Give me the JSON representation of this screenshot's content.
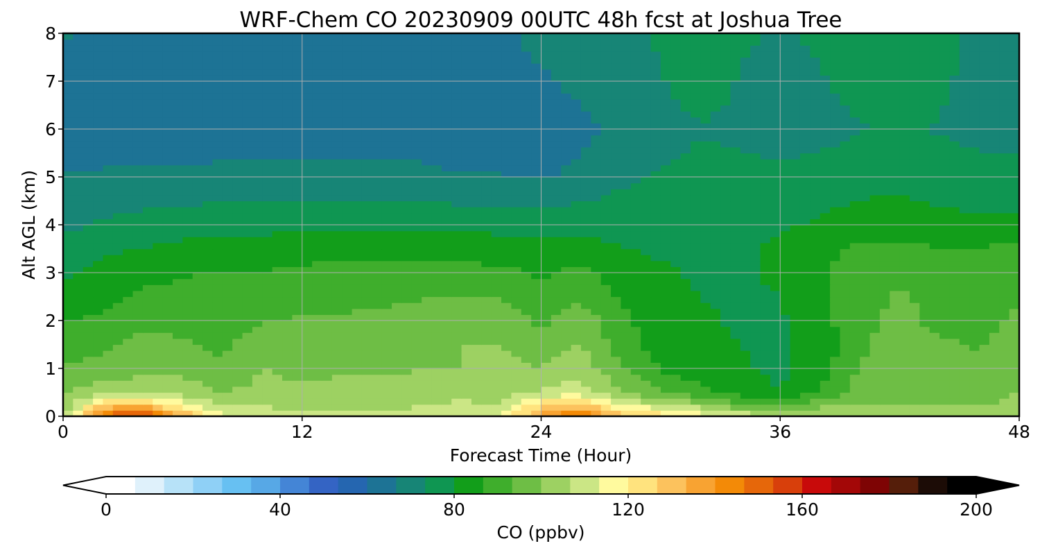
{
  "chart_data": {
    "type": "heatmap",
    "title": "WRF-Chem CO  20230909 00UTC 48h fcst at Joshua Tree",
    "xlabel": "Forecast Time (Hour)",
    "ylabel": "Alt AGL (km)",
    "xlim": [
      0,
      48
    ],
    "ylim": [
      0,
      8
    ],
    "xticks": [
      "0",
      "12",
      "24",
      "36",
      "48"
    ],
    "yticks": [
      "0",
      "1",
      "2",
      "3",
      "4",
      "5",
      "6",
      "7",
      "8"
    ],
    "grid": true,
    "colorbar": {
      "label": "CO  (ppbv)",
      "range": [
        0,
        200
      ],
      "ticks": [
        "0",
        "40",
        "80",
        "120",
        "160",
        "200"
      ],
      "extend": "both",
      "colors": [
        "#ffffff",
        "#dff1fb",
        "#b7e2f8",
        "#8fd0f6",
        "#67c0f2",
        "#57a8e6",
        "#4485d6",
        "#3464c4",
        "#2566b0",
        "#1d7395",
        "#178576",
        "#0f9652",
        "#129e1a",
        "#3fae2c",
        "#6ebe45",
        "#9dd162",
        "#cbe685",
        "#fffa9e",
        "#ffe37e",
        "#fcc25d",
        "#f8a332",
        "#f38a07",
        "#e6670a",
        "#d83f0b",
        "#c80a0a",
        "#a30707",
        "#7e0404",
        "#551e0a",
        "#1c0c06",
        "#000000"
      ]
    },
    "x_hours": [
      0,
      2,
      4,
      6,
      8,
      10,
      12,
      14,
      16,
      18,
      20,
      22,
      24,
      26,
      28,
      30,
      32,
      34,
      36,
      38,
      40,
      42,
      44,
      46,
      48
    ],
    "y_km": [
      0,
      0.25,
      0.5,
      1,
      1.5,
      2,
      2.5,
      3,
      3.5,
      4,
      5,
      6,
      7,
      8
    ],
    "values_ppbv": [
      [
        105,
        150,
        160,
        135,
        115,
        110,
        108,
        108,
        108,
        110,
        115,
        112,
        140,
        150,
        130,
        125,
        118,
        112,
        108,
        106,
        105,
        105,
        104,
        104,
        106
      ],
      [
        100,
        125,
        130,
        115,
        106,
        106,
        104,
        104,
        104,
        106,
        108,
        106,
        125,
        128,
        112,
        108,
        102,
        94,
        92,
        98,
        100,
        100,
        99,
        99,
        102
      ],
      [
        100,
        104,
        104,
        104,
        100,
        102,
        102,
        104,
        104,
        105,
        104,
        104,
        108,
        110,
        100,
        94,
        88,
        84,
        80,
        88,
        96,
        98,
        98,
        97,
        100
      ],
      [
        94,
        96,
        98,
        98,
        94,
        100,
        98,
        98,
        98,
        100,
        100,
        102,
        100,
        104,
        94,
        86,
        83,
        81,
        78,
        84,
        94,
        98,
        96,
        94,
        97
      ],
      [
        90,
        92,
        95,
        94,
        92,
        96,
        96,
        96,
        97,
        98,
        100,
        100,
        96,
        100,
        90,
        84,
        82,
        80,
        79,
        82,
        92,
        96,
        94,
        93,
        95
      ],
      [
        86,
        88,
        92,
        92,
        92,
        93,
        94,
        94,
        95,
        96,
        98,
        97,
        92,
        98,
        88,
        83,
        81,
        79,
        79,
        84,
        92,
        95,
        92,
        92,
        94
      ],
      [
        82,
        85,
        88,
        89,
        90,
        90,
        91,
        92,
        92,
        93,
        94,
        93,
        88,
        92,
        86,
        82,
        80,
        79,
        80,
        86,
        91,
        94,
        92,
        92,
        93
      ],
      [
        79,
        82,
        84,
        86,
        87,
        87,
        88,
        89,
        89,
        90,
        89,
        88,
        86,
        88,
        84,
        81,
        79,
        79,
        81,
        86,
        90,
        92,
        91,
        91,
        91
      ],
      [
        76,
        79,
        80,
        82,
        82,
        83,
        84,
        84,
        84,
        84,
        84,
        83,
        82,
        83,
        80,
        79,
        78,
        79,
        81,
        85,
        88,
        88,
        87,
        87,
        88
      ],
      [
        72,
        74,
        76,
        77,
        78,
        78,
        78,
        78,
        78,
        78,
        78,
        78,
        78,
        78,
        78,
        77,
        77,
        78,
        79,
        81,
        83,
        84,
        82,
        82,
        82
      ],
      [
        67,
        68,
        68,
        68,
        68,
        68,
        68,
        68,
        68,
        68,
        67,
        67,
        66,
        68,
        72,
        74,
        75,
        75,
        75,
        76,
        77,
        78,
        76,
        75,
        75
      ],
      [
        62,
        61,
        61,
        63,
        64,
        64,
        64,
        64,
        64,
        64,
        63,
        63,
        63,
        65,
        68,
        71,
        73,
        72,
        70,
        71,
        73,
        74,
        73,
        72,
        72
      ],
      [
        65,
        63,
        62,
        63,
        64,
        65,
        64,
        64,
        64,
        64,
        65,
        65,
        66,
        68,
        71,
        73,
        76,
        73,
        72,
        73,
        75,
        76,
        74,
        72,
        70
      ],
      [
        67,
        66,
        65,
        65,
        65,
        66,
        65,
        64,
        64,
        65,
        66,
        66,
        68,
        70,
        72,
        74,
        76,
        74,
        73,
        74,
        76,
        77,
        75,
        72,
        70
      ]
    ]
  }
}
